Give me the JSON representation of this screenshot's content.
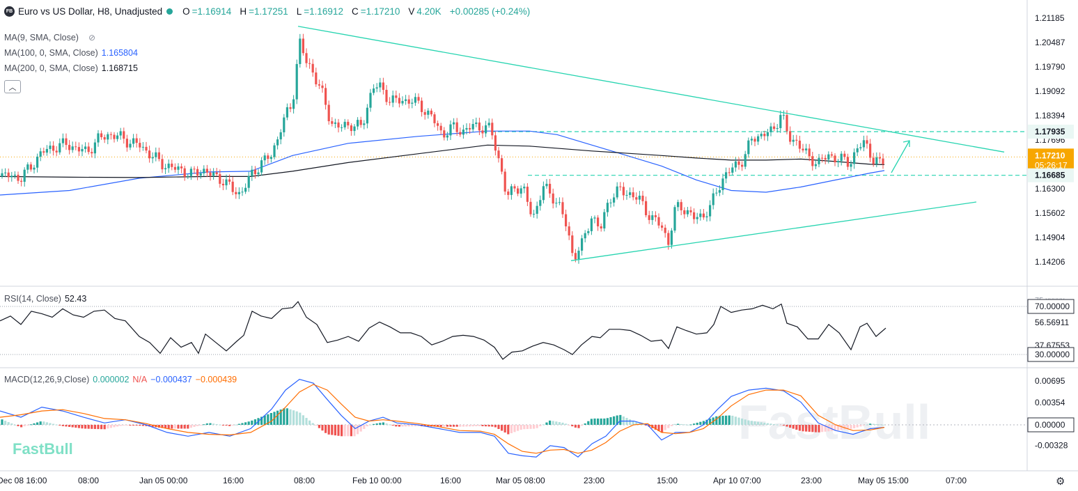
{
  "header": {
    "symbol_badge": "FB",
    "title": "Euro vs US Dollar, H8, Unadjusted",
    "open_label": "O",
    "open_value": "=1.16914",
    "high_label": "H",
    "high_value": "=1.17251",
    "low_label": "L",
    "low_value": "=1.16912",
    "close_label": "C",
    "close_value": "=1.17210",
    "volume_label": "V",
    "volume_value": "4.20K",
    "change": "+0.00285 (+0.24%)"
  },
  "indicators": {
    "ma9": {
      "label": "MA(9, SMA, Close)",
      "value": ""
    },
    "ma100": {
      "label": "MA(100, 0, SMA, Close)",
      "value": "1.165804"
    },
    "ma200": {
      "label": "MA(200, 0, SMA, Close)",
      "value": "1.168715"
    },
    "rsi": {
      "label": "RSI(14, Close)",
      "value": "52.43"
    },
    "macd": {
      "label": "MACD(12,26,9,Close)",
      "hist": "0.000002",
      "na": "N/A",
      "macd": "−0.000437",
      "signal": "−0.000439"
    }
  },
  "watermark": "FastBull",
  "colors": {
    "up": "#26a69a",
    "down": "#ef5350",
    "ma100": "#2962ff",
    "ma200": "#131722",
    "trend": "#26d4b0",
    "macd_line": "#2962ff",
    "signal_line": "#ff6d00",
    "price_badge": "#f7a600"
  },
  "icons": {
    "collapse": "chevron-up-icon",
    "settings": "gear-icon",
    "visibility": "eye-off-icon"
  },
  "chart_data": {
    "type": "candlestick",
    "title": "Euro vs US Dollar, H8, Unadjusted",
    "price_axis": {
      "ticks": [
        "1.21185",
        "1.20487",
        "1.19790",
        "1.19092",
        "1.18394",
        "1.17696",
        "1.16998",
        "1.16300",
        "1.15602",
        "1.14904",
        "1.14206"
      ]
    },
    "time_axis": {
      "ticks": [
        "Dec 08 16:00",
        "08:00",
        "Jan 05 00:00",
        "16:00",
        "08:00",
        "Feb 10 00:00",
        "16:00",
        "Mar 05 08:00",
        "23:00",
        "15:00",
        "Apr 10 07:00",
        "23:00",
        "May 05 15:00",
        "07:00"
      ]
    },
    "price_labels": {
      "resistance": "1.17935",
      "current": "1.17210",
      "countdown": "05:26:17",
      "support": "1.16685"
    },
    "levels": {
      "resistance": 1.17935,
      "support": 1.16685,
      "current": 1.1721
    },
    "close_path": [
      [
        0,
        1.1665
      ],
      [
        15,
        1.1668
      ],
      [
        30,
        1.166
      ],
      [
        45,
        1.1695
      ],
      [
        60,
        1.1735
      ],
      [
        80,
        1.175
      ],
      [
        95,
        1.1758
      ],
      [
        110,
        1.1745
      ],
      [
        125,
        1.1735
      ],
      [
        140,
        1.177
      ],
      [
        155,
        1.1785
      ],
      [
        170,
        1.178
      ],
      [
        185,
        1.1765
      ],
      [
        200,
        1.1755
      ],
      [
        215,
        1.173
      ],
      [
        230,
        1.1705
      ],
      [
        245,
        1.169
      ],
      [
        260,
        1.1685
      ],
      [
        275,
        1.167
      ],
      [
        290,
        1.1685
      ],
      [
        305,
        1.1668
      ],
      [
        320,
        1.1655
      ],
      [
        335,
        1.1625
      ],
      [
        345,
        1.1615
      ],
      [
        360,
        1.1665
      ],
      [
        375,
        1.1705
      ],
      [
        390,
        1.1725
      ],
      [
        405,
        1.1815
      ],
      [
        420,
        1.1875
      ],
      [
        430,
        1.2055
      ],
      [
        440,
        1.199
      ],
      [
        450,
        1.1965
      ],
      [
        462,
        1.1905
      ],
      [
        475,
        1.182
      ],
      [
        490,
        1.1805
      ],
      [
        505,
        1.1815
      ],
      [
        520,
        1.1805
      ],
      [
        535,
        1.1925
      ],
      [
        545,
        1.192
      ],
      [
        560,
        1.1885
      ],
      [
        575,
        1.188
      ],
      [
        590,
        1.1885
      ],
      [
        605,
        1.1865
      ],
      [
        620,
        1.1835
      ],
      [
        635,
        1.1785
      ],
      [
        650,
        1.1805
      ],
      [
        665,
        1.1795
      ],
      [
        680,
        1.181
      ],
      [
        695,
        1.1805
      ],
      [
        705,
        1.18
      ],
      [
        712,
        1.1745
      ],
      [
        720,
        1.1685
      ],
      [
        728,
        1.16
      ],
      [
        740,
        1.164
      ],
      [
        752,
        1.1625
      ],
      [
        765,
        1.1545
      ],
      [
        780,
        1.1635
      ],
      [
        795,
        1.1605
      ],
      [
        805,
        1.1575
      ],
      [
        815,
        1.151
      ],
      [
        823,
        1.1435
      ],
      [
        835,
        1.1465
      ],
      [
        850,
        1.1555
      ],
      [
        862,
        1.151
      ],
      [
        875,
        1.1605
      ],
      [
        890,
        1.1625
      ],
      [
        905,
        1.1615
      ],
      [
        920,
        1.1595
      ],
      [
        935,
        1.1545
      ],
      [
        950,
        1.1525
      ],
      [
        960,
        1.1475
      ],
      [
        970,
        1.1575
      ],
      [
        980,
        1.158
      ],
      [
        995,
        1.1545
      ],
      [
        1010,
        1.1555
      ],
      [
        1020,
        1.1575
      ],
      [
        1030,
        1.163
      ],
      [
        1040,
        1.1665
      ],
      [
        1055,
        1.1695
      ],
      [
        1068,
        1.1715
      ],
      [
        1080,
        1.1775
      ],
      [
        1095,
        1.1785
      ],
      [
        1110,
        1.1795
      ],
      [
        1122,
        1.185
      ],
      [
        1132,
        1.1775
      ],
      [
        1145,
        1.1765
      ],
      [
        1160,
        1.172
      ],
      [
        1175,
        1.1705
      ],
      [
        1190,
        1.1725
      ],
      [
        1205,
        1.1715
      ],
      [
        1220,
        1.1705
      ],
      [
        1232,
        1.1745
      ],
      [
        1242,
        1.1765
      ],
      [
        1255,
        1.171
      ],
      [
        1265,
        1.17
      ],
      [
        1272,
        1.1721
      ]
    ],
    "ma100_path": [
      [
        0,
        1.1612
      ],
      [
        100,
        1.1625
      ],
      [
        200,
        1.166
      ],
      [
        300,
        1.1678
      ],
      [
        360,
        1.168
      ],
      [
        420,
        1.1725
      ],
      [
        500,
        1.176
      ],
      [
        600,
        1.178
      ],
      [
        700,
        1.1795
      ],
      [
        760,
        1.1795
      ],
      [
        800,
        1.1785
      ],
      [
        850,
        1.1755
      ],
      [
        900,
        1.1725
      ],
      [
        950,
        1.1695
      ],
      [
        1000,
        1.1655
      ],
      [
        1050,
        1.1625
      ],
      [
        1100,
        1.162
      ],
      [
        1150,
        1.1635
      ],
      [
        1200,
        1.1655
      ],
      [
        1250,
        1.1675
      ],
      [
        1270,
        1.1682
      ]
    ],
    "ma200_path": [
      [
        0,
        1.1665
      ],
      [
        100,
        1.1663
      ],
      [
        200,
        1.1662
      ],
      [
        300,
        1.1665
      ],
      [
        360,
        1.1665
      ],
      [
        420,
        1.168
      ],
      [
        500,
        1.1705
      ],
      [
        600,
        1.173
      ],
      [
        700,
        1.1755
      ],
      [
        760,
        1.1752
      ],
      [
        850,
        1.1738
      ],
      [
        950,
        1.1725
      ],
      [
        1000,
        1.1718
      ],
      [
        1050,
        1.1712
      ],
      [
        1100,
        1.1712
      ],
      [
        1150,
        1.1715
      ],
      [
        1200,
        1.1708
      ],
      [
        1250,
        1.17
      ],
      [
        1270,
        1.1699
      ]
    ],
    "rsi": {
      "label": "RSI(14, Close)",
      "value": 52.43,
      "levels": [
        70,
        30
      ],
      "ticks": [
        "75.xxxxx",
        "70.00000",
        "56.56911",
        "37.67553",
        "30.00000"
      ],
      "path": [
        [
          0,
          58
        ],
        [
          15,
          62
        ],
        [
          30,
          55
        ],
        [
          45,
          66
        ],
        [
          60,
          64
        ],
        [
          75,
          61
        ],
        [
          90,
          68
        ],
        [
          105,
          63
        ],
        [
          120,
          61
        ],
        [
          135,
          66
        ],
        [
          150,
          67
        ],
        [
          165,
          60
        ],
        [
          180,
          58
        ],
        [
          200,
          45
        ],
        [
          215,
          40
        ],
        [
          230,
          31
        ],
        [
          245,
          44
        ],
        [
          260,
          36
        ],
        [
          275,
          40
        ],
        [
          285,
          31
        ],
        [
          295,
          47
        ],
        [
          310,
          40
        ],
        [
          325,
          33
        ],
        [
          340,
          41
        ],
        [
          350,
          46
        ],
        [
          362,
          66
        ],
        [
          375,
          62
        ],
        [
          390,
          60
        ],
        [
          405,
          68
        ],
        [
          420,
          69
        ],
        [
          428,
          74
        ],
        [
          440,
          61
        ],
        [
          455,
          55
        ],
        [
          470,
          40
        ],
        [
          485,
          42
        ],
        [
          500,
          45
        ],
        [
          515,
          41
        ],
        [
          530,
          52
        ],
        [
          545,
          57
        ],
        [
          560,
          53
        ],
        [
          575,
          48
        ],
        [
          590,
          48
        ],
        [
          605,
          45
        ],
        [
          620,
          38
        ],
        [
          635,
          41
        ],
        [
          650,
          45
        ],
        [
          665,
          46
        ],
        [
          680,
          45
        ],
        [
          695,
          42
        ],
        [
          710,
          36
        ],
        [
          722,
          26
        ],
        [
          735,
          32
        ],
        [
          750,
          33
        ],
        [
          765,
          37
        ],
        [
          780,
          40
        ],
        [
          795,
          38
        ],
        [
          810,
          34
        ],
        [
          822,
          30
        ],
        [
          835,
          38
        ],
        [
          850,
          45
        ],
        [
          862,
          44
        ],
        [
          875,
          51
        ],
        [
          890,
          51
        ],
        [
          905,
          50
        ],
        [
          920,
          46
        ],
        [
          935,
          41
        ],
        [
          950,
          42
        ],
        [
          960,
          35
        ],
        [
          972,
          53
        ],
        [
          985,
          50
        ],
        [
          1000,
          47
        ],
        [
          1015,
          48
        ],
        [
          1025,
          55
        ],
        [
          1035,
          70
        ],
        [
          1050,
          65
        ],
        [
          1065,
          67
        ],
        [
          1080,
          68
        ],
        [
          1095,
          71
        ],
        [
          1110,
          68
        ],
        [
          1122,
          72
        ],
        [
          1130,
          56
        ],
        [
          1145,
          53
        ],
        [
          1160,
          43
        ],
        [
          1175,
          43
        ],
        [
          1190,
          55
        ],
        [
          1205,
          48
        ],
        [
          1222,
          34
        ],
        [
          1235,
          53
        ],
        [
          1245,
          56
        ],
        [
          1258,
          45
        ],
        [
          1272,
          52
        ]
      ]
    },
    "macd": {
      "label": "MACD(12,26,9,Close)",
      "ticks": [
        "0.00695",
        "0.00354",
        "0.00000",
        "-0.00328"
      ],
      "macd_path": [
        [
          0,
          0.0022
        ],
        [
          30,
          0.0012
        ],
        [
          60,
          0.0028
        ],
        [
          90,
          0.0022
        ],
        [
          120,
          0.0012
        ],
        [
          150,
          0.0003
        ],
        [
          180,
          0.0008
        ],
        [
          210,
          0.0
        ],
        [
          240,
          -0.0012
        ],
        [
          270,
          -0.0018
        ],
        [
          300,
          -0.0012
        ],
        [
          330,
          -0.0018
        ],
        [
          360,
          -0.0006
        ],
        [
          390,
          0.0025
        ],
        [
          410,
          0.0055
        ],
        [
          430,
          0.0072
        ],
        [
          450,
          0.0066
        ],
        [
          470,
          0.004
        ],
        [
          490,
          0.0015
        ],
        [
          510,
          -0.0006
        ],
        [
          530,
          0.0006
        ],
        [
          550,
          0.0012
        ],
        [
          570,
          0.0003
        ],
        [
          600,
          0.0
        ],
        [
          630,
          -0.0006
        ],
        [
          660,
          -0.0012
        ],
        [
          690,
          -0.0012
        ],
        [
          710,
          -0.0018
        ],
        [
          730,
          -0.0045
        ],
        [
          750,
          -0.0049
        ],
        [
          770,
          -0.0051
        ],
        [
          790,
          -0.0033
        ],
        [
          810,
          -0.0036
        ],
        [
          830,
          -0.0051
        ],
        [
          850,
          -0.003
        ],
        [
          870,
          -0.0018
        ],
        [
          890,
          0.0006
        ],
        [
          910,
          0.0006
        ],
        [
          930,
          0.0
        ],
        [
          950,
          -0.0024
        ],
        [
          970,
          -0.0012
        ],
        [
          990,
          -0.0012
        ],
        [
          1010,
          0.0
        ],
        [
          1030,
          0.0024
        ],
        [
          1050,
          0.0045
        ],
        [
          1075,
          0.0055
        ],
        [
          1100,
          0.0058
        ],
        [
          1125,
          0.0054
        ],
        [
          1150,
          0.0036
        ],
        [
          1175,
          0.0003
        ],
        [
          1200,
          -0.0009
        ],
        [
          1225,
          -0.0015
        ],
        [
          1250,
          -0.0006
        ],
        [
          1270,
          -0.0004
        ]
      ],
      "signal_path": [
        [
          0,
          0.0012
        ],
        [
          30,
          0.0016
        ],
        [
          60,
          0.0022
        ],
        [
          90,
          0.0024
        ],
        [
          120,
          0.0018
        ],
        [
          150,
          0.001
        ],
        [
          180,
          0.0008
        ],
        [
          210,
          0.0002
        ],
        [
          240,
          -0.0006
        ],
        [
          270,
          -0.0012
        ],
        [
          300,
          -0.0015
        ],
        [
          330,
          -0.0016
        ],
        [
          360,
          -0.0012
        ],
        [
          390,
          0.0006
        ],
        [
          410,
          0.0028
        ],
        [
          430,
          0.0052
        ],
        [
          450,
          0.0064
        ],
        [
          470,
          0.0055
        ],
        [
          490,
          0.0033
        ],
        [
          510,
          0.0012
        ],
        [
          530,
          0.0006
        ],
        [
          550,
          0.0008
        ],
        [
          570,
          0.0006
        ],
        [
          600,
          0.0002
        ],
        [
          630,
          -0.0003
        ],
        [
          660,
          -0.0009
        ],
        [
          690,
          -0.001
        ],
        [
          710,
          -0.0015
        ],
        [
          730,
          -0.003
        ],
        [
          750,
          -0.0042
        ],
        [
          770,
          -0.0045
        ],
        [
          790,
          -0.004
        ],
        [
          810,
          -0.0039
        ],
        [
          830,
          -0.0045
        ],
        [
          850,
          -0.004
        ],
        [
          870,
          -0.0028
        ],
        [
          890,
          -0.001
        ],
        [
          910,
          0.0
        ],
        [
          930,
          0.0002
        ],
        [
          950,
          -0.0012
        ],
        [
          970,
          -0.0014
        ],
        [
          990,
          -0.0012
        ],
        [
          1010,
          -0.0006
        ],
        [
          1030,
          0.001
        ],
        [
          1050,
          0.003
        ],
        [
          1075,
          0.0048
        ],
        [
          1100,
          0.0055
        ],
        [
          1125,
          0.0055
        ],
        [
          1150,
          0.0046
        ],
        [
          1175,
          0.0015
        ],
        [
          1200,
          0.0
        ],
        [
          1225,
          -0.0009
        ],
        [
          1250,
          -0.0008
        ],
        [
          1270,
          -0.0004
        ]
      ]
    }
  }
}
